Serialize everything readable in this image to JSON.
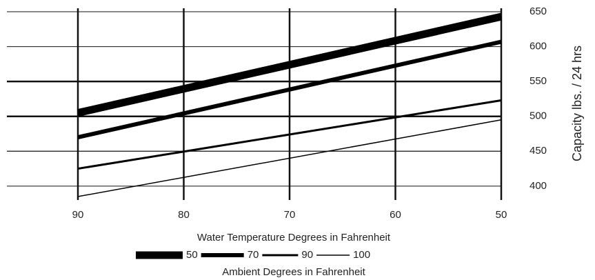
{
  "chart_data": {
    "type": "line",
    "x_label": "Water Temperature Degrees in Fahrenheit",
    "y_label": "Capacity lbs. / 24 hrs",
    "legend_title": "Ambient Degrees in Fahrenheit",
    "x": [
      90,
      50
    ],
    "xlim": [
      90,
      50
    ],
    "xticks": [
      90,
      80,
      70,
      60,
      50
    ],
    "ylim": [
      385,
      655
    ],
    "yticks": [
      400,
      450,
      500,
      550,
      600,
      650
    ],
    "y_axis_side": "right",
    "grid": true,
    "legend_position": "bottom",
    "series": [
      {
        "name": "50",
        "color": "#000000",
        "line_width": 11,
        "values": [
          505,
          643
        ]
      },
      {
        "name": "70",
        "color": "#000000",
        "line_width": 6,
        "values": [
          470,
          607
        ]
      },
      {
        "name": "90",
        "color": "#000000",
        "line_width": 3,
        "values": [
          425,
          523
        ]
      },
      {
        "name": "100",
        "color": "#000000",
        "line_width": 1.5,
        "values": [
          385,
          495
        ]
      }
    ]
  }
}
